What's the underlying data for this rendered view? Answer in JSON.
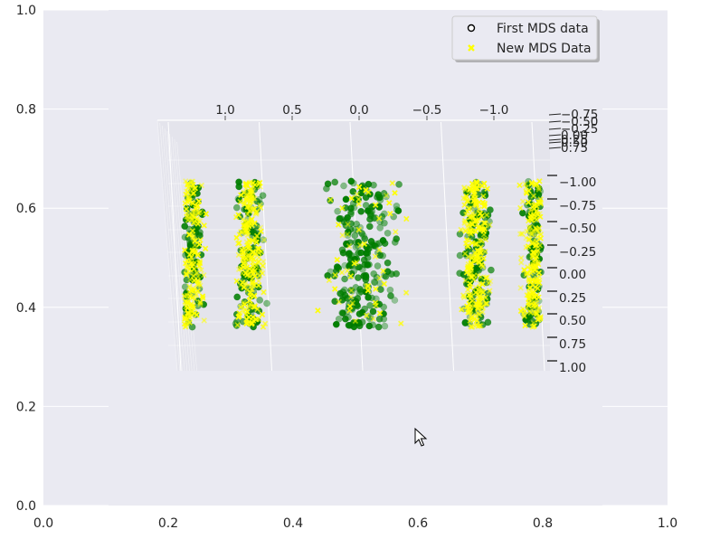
{
  "chart_data": {
    "type": "scatter",
    "projection": "3d",
    "outer_axes": {
      "xlim": [
        0,
        1
      ],
      "ylim": [
        0,
        1
      ],
      "x_ticks": [
        "0.0",
        "0.2",
        "0.4",
        "0.6",
        "0.8",
        "1.0"
      ],
      "y_ticks": [
        "0.0",
        "0.2",
        "0.4",
        "0.6",
        "0.8",
        "1.0"
      ],
      "x_tick_values": [
        0,
        0.2,
        0.4,
        0.6,
        0.8,
        1.0
      ],
      "y_tick_values": [
        0,
        0.2,
        0.4,
        0.6,
        0.8,
        1.0
      ],
      "grid": true
    },
    "axis3d_x": {
      "ticks": [
        "1.0",
        "0.5",
        "0.0",
        "−0.5",
        "−1.0"
      ],
      "tick_values": [
        1.0,
        0.5,
        0.0,
        -0.5,
        -1.0
      ]
    },
    "axis3d_y": {
      "ticks": [
        "−1.00",
        "−0.75",
        "−0.50",
        "−0.25",
        "0.00",
        "0.25",
        "0.50",
        "0.75",
        "1.00"
      ],
      "tick_values": [
        -1.0,
        -0.75,
        -0.5,
        -0.25,
        0.0,
        0.25,
        0.5,
        0.75,
        1.0
      ]
    },
    "axis3d_z": {
      "ticks": [
        "−0.75",
        "−0.50",
        "−0.25",
        "0.00",
        "0.25",
        "0.50",
        "0.75"
      ],
      "tick_values": [
        -0.75,
        -0.5,
        -0.25,
        0.0,
        0.25,
        0.5,
        0.75
      ]
    },
    "series": [
      {
        "name": "First MDS data",
        "color": "#008000",
        "marker": "circle",
        "legend_face": "#ffffff",
        "legend_edge": "#000000"
      },
      {
        "name": "New MDS Data",
        "color": "#ffff00",
        "marker": "x"
      }
    ],
    "legend_position": "top-right",
    "clusters_x": [
      -0.95,
      -0.62,
      0.0,
      0.62,
      0.95
    ]
  }
}
